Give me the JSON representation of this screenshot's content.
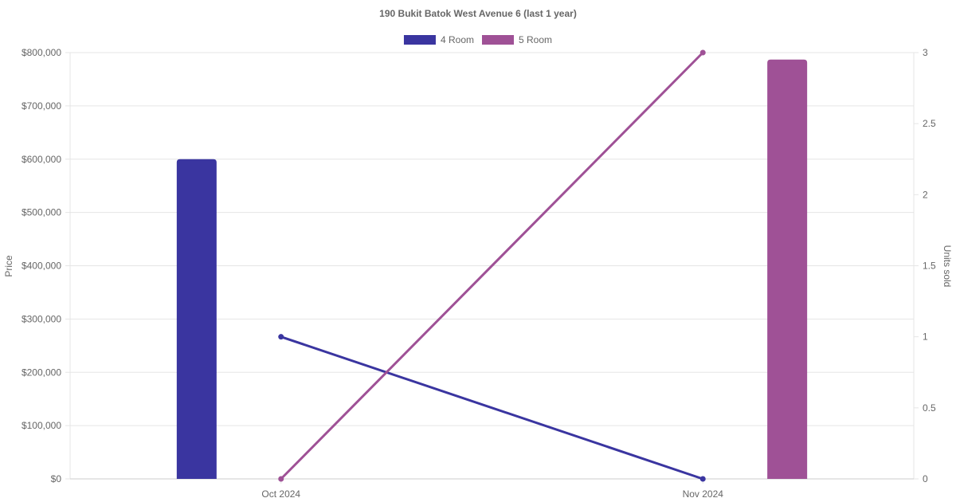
{
  "chart_data": {
    "type": "bar",
    "title": "190 Bukit Batok West Avenue 6 (last 1 year)",
    "categories": [
      "Oct 2024",
      "Nov 2024"
    ],
    "y_left": {
      "label": "Price",
      "range": [
        0,
        800000
      ],
      "ticks": [
        0,
        100000,
        200000,
        300000,
        400000,
        500000,
        600000,
        700000,
        800000
      ],
      "tick_labels": [
        "$0",
        "$100,000",
        "$200,000",
        "$300,000",
        "$400,000",
        "$500,000",
        "$600,000",
        "$700,000",
        "$800,000"
      ]
    },
    "y_right": {
      "label": "Units sold",
      "range": [
        0,
        3
      ],
      "ticks": [
        0,
        0.5,
        1,
        1.5,
        2,
        2.5,
        3
      ],
      "tick_labels": [
        "0",
        "0.5",
        "1",
        "1.5",
        "2",
        "2.5",
        "3"
      ]
    },
    "legend_position": "top",
    "grid": true,
    "series": [
      {
        "name": "4 Room",
        "color": "#3a35a0",
        "price": [
          600000,
          null
        ],
        "units_sold": [
          1,
          0
        ]
      },
      {
        "name": "5 Room",
        "color": "#9f5196",
        "price": [
          null,
          787000
        ],
        "units_sold": [
          0,
          3
        ]
      }
    ]
  }
}
